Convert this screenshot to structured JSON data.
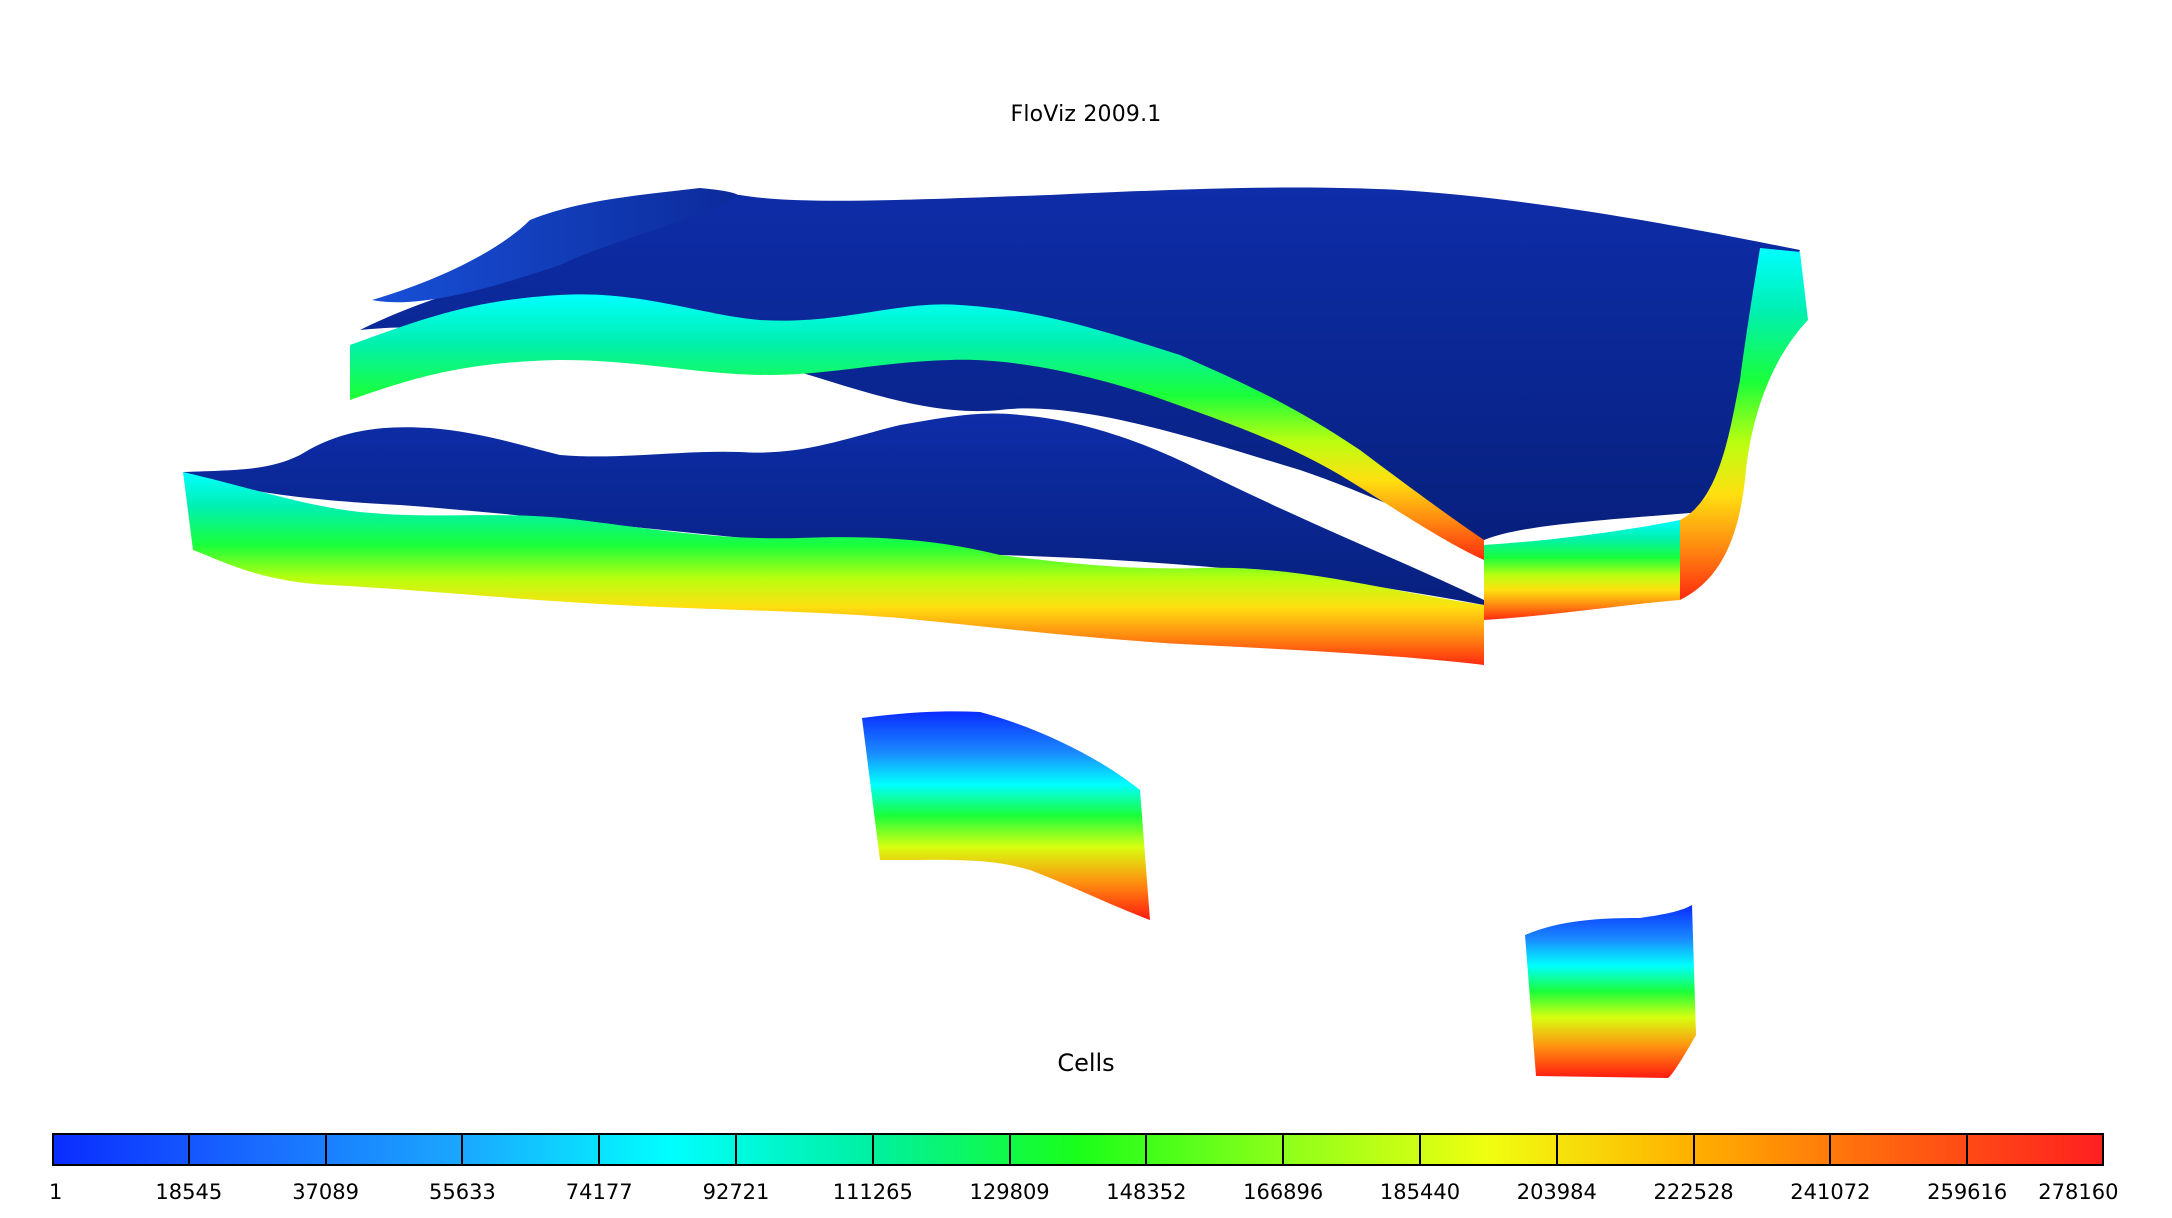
{
  "app_title": "FloViz 2009.1",
  "legend": {
    "title": "Cells",
    "min": 1,
    "max": 278160,
    "tick_labels": [
      "1",
      "18545",
      "37089",
      "55633",
      "74177",
      "92721",
      "111265",
      "129809",
      "148352",
      "166896",
      "185440",
      "203984",
      "222528",
      "241072",
      "259616",
      "278160"
    ],
    "colormap": [
      "#0a2cff",
      "#1a6bff",
      "#1aa8ff",
      "#00ffff",
      "#00f0a0",
      "#1aff1a",
      "#8cff1a",
      "#f0ff10",
      "#ffb000",
      "#ff6010",
      "#ff2020"
    ],
    "top_surface_color": "#0c2a9a"
  }
}
